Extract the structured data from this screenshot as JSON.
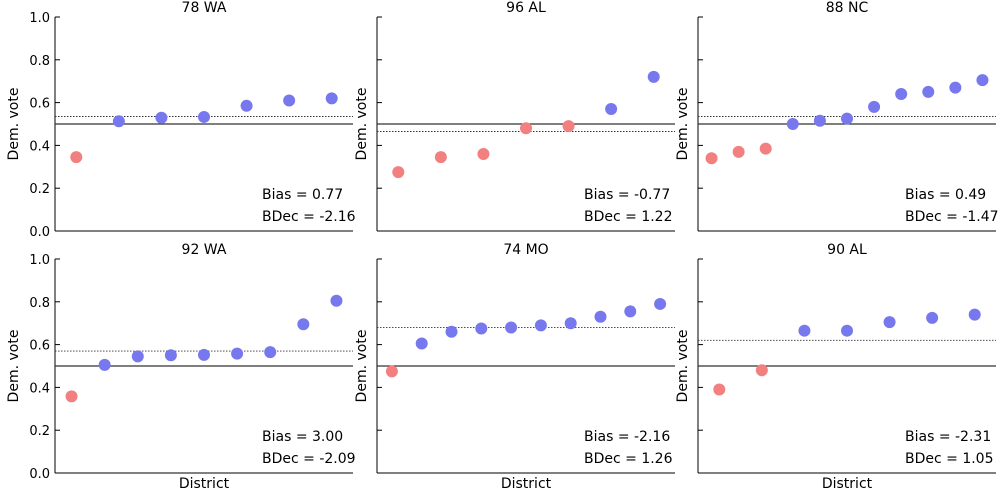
{
  "chart_data": [
    {
      "type": "scatter",
      "title": "78 WA",
      "ylabel": "Dem. vote",
      "xlabel": "",
      "ylim": [
        0,
        1
      ],
      "yticks": [
        "0.0",
        "0.2",
        "0.4",
        "0.6",
        "0.8",
        "1.0"
      ],
      "show_ytick_labels": true,
      "mean_line": 0.535,
      "points": [
        {
          "x": 1,
          "y": 0.345,
          "party": "rep"
        },
        {
          "x": 2,
          "y": 0.513,
          "party": "dem"
        },
        {
          "x": 3,
          "y": 0.529,
          "party": "dem"
        },
        {
          "x": 4,
          "y": 0.533,
          "party": "dem"
        },
        {
          "x": 5,
          "y": 0.585,
          "party": "dem"
        },
        {
          "x": 6,
          "y": 0.61,
          "party": "dem"
        },
        {
          "x": 7,
          "y": 0.62,
          "party": "dem"
        }
      ],
      "bias": "Bias = 0.77",
      "bdec": "BDec = -2.16"
    },
    {
      "type": "scatter",
      "title": "96 AL",
      "ylabel": "Dem. vote",
      "xlabel": "",
      "ylim": [
        0,
        1
      ],
      "show_ytick_labels": false,
      "mean_line": 0.465,
      "points": [
        {
          "x": 1,
          "y": 0.275,
          "party": "rep"
        },
        {
          "x": 2,
          "y": 0.345,
          "party": "rep"
        },
        {
          "x": 3,
          "y": 0.36,
          "party": "rep"
        },
        {
          "x": 4,
          "y": 0.48,
          "party": "rep"
        },
        {
          "x": 5,
          "y": 0.49,
          "party": "rep"
        },
        {
          "x": 6,
          "y": 0.57,
          "party": "dem"
        },
        {
          "x": 7,
          "y": 0.72,
          "party": "dem"
        }
      ],
      "bias": "Bias = -0.77",
      "bdec": "BDec = 1.22"
    },
    {
      "type": "scatter",
      "title": "88 NC",
      "ylabel": "Dem. vote",
      "xlabel": "",
      "ylim": [
        0,
        1
      ],
      "show_ytick_labels": false,
      "mean_line": 0.535,
      "points": [
        {
          "x": 1,
          "y": 0.34,
          "party": "rep"
        },
        {
          "x": 2,
          "y": 0.37,
          "party": "rep"
        },
        {
          "x": 3,
          "y": 0.385,
          "party": "rep"
        },
        {
          "x": 4,
          "y": 0.5,
          "party": "dem"
        },
        {
          "x": 5,
          "y": 0.515,
          "party": "dem"
        },
        {
          "x": 6,
          "y": 0.525,
          "party": "dem"
        },
        {
          "x": 7,
          "y": 0.58,
          "party": "dem"
        },
        {
          "x": 8,
          "y": 0.64,
          "party": "dem"
        },
        {
          "x": 9,
          "y": 0.65,
          "party": "dem"
        },
        {
          "x": 10,
          "y": 0.67,
          "party": "dem"
        },
        {
          "x": 11,
          "y": 0.705,
          "party": "dem"
        }
      ],
      "bias": "Bias = 0.49",
      "bdec": "BDec = -1.47"
    },
    {
      "type": "scatter",
      "title": "92 WA",
      "ylabel": "Dem. vote",
      "xlabel": "District",
      "ylim": [
        0,
        1
      ],
      "yticks": [
        "0.0",
        "0.2",
        "0.4",
        "0.6",
        "0.8",
        "1.0"
      ],
      "show_ytick_labels": true,
      "mean_line": 0.57,
      "points": [
        {
          "x": 1,
          "y": 0.358,
          "party": "rep"
        },
        {
          "x": 2,
          "y": 0.505,
          "party": "dem"
        },
        {
          "x": 3,
          "y": 0.545,
          "party": "dem"
        },
        {
          "x": 4,
          "y": 0.55,
          "party": "dem"
        },
        {
          "x": 5,
          "y": 0.552,
          "party": "dem"
        },
        {
          "x": 6,
          "y": 0.558,
          "party": "dem"
        },
        {
          "x": 7,
          "y": 0.565,
          "party": "dem"
        },
        {
          "x": 8,
          "y": 0.695,
          "party": "dem"
        },
        {
          "x": 9,
          "y": 0.805,
          "party": "dem"
        }
      ],
      "bias": "Bias = 3.00",
      "bdec": "BDec = -2.09"
    },
    {
      "type": "scatter",
      "title": "74 MO",
      "ylabel": "Dem. vote",
      "xlabel": "District",
      "ylim": [
        0,
        1
      ],
      "show_ytick_labels": false,
      "mean_line": 0.68,
      "points": [
        {
          "x": 1,
          "y": 0.475,
          "party": "rep"
        },
        {
          "x": 2,
          "y": 0.605,
          "party": "dem"
        },
        {
          "x": 3,
          "y": 0.66,
          "party": "dem"
        },
        {
          "x": 4,
          "y": 0.675,
          "party": "dem"
        },
        {
          "x": 5,
          "y": 0.68,
          "party": "dem"
        },
        {
          "x": 6,
          "y": 0.69,
          "party": "dem"
        },
        {
          "x": 7,
          "y": 0.7,
          "party": "dem"
        },
        {
          "x": 8,
          "y": 0.73,
          "party": "dem"
        },
        {
          "x": 9,
          "y": 0.755,
          "party": "dem"
        },
        {
          "x": 10,
          "y": 0.79,
          "party": "dem"
        }
      ],
      "bias": "Bias = -2.16",
      "bdec": "BDec = 1.26"
    },
    {
      "type": "scatter",
      "title": "90 AL",
      "ylabel": "Dem. vote",
      "xlabel": "District",
      "ylim": [
        0,
        1
      ],
      "show_ytick_labels": false,
      "mean_line": 0.62,
      "points": [
        {
          "x": 1,
          "y": 0.39,
          "party": "rep"
        },
        {
          "x": 2,
          "y": 0.48,
          "party": "rep"
        },
        {
          "x": 3,
          "y": 0.665,
          "party": "dem"
        },
        {
          "x": 4,
          "y": 0.665,
          "party": "dem"
        },
        {
          "x": 5,
          "y": 0.705,
          "party": "dem"
        },
        {
          "x": 6,
          "y": 0.725,
          "party": "dem"
        },
        {
          "x": 7,
          "y": 0.74,
          "party": "dem"
        }
      ],
      "bias": "Bias = -2.31",
      "bdec": "BDec = 1.05"
    }
  ],
  "colors": {
    "dem": "#7777ee",
    "rep": "#f28080",
    "axis": "#000000",
    "reference_line": "#333333"
  },
  "reference_line_value": 0.5
}
